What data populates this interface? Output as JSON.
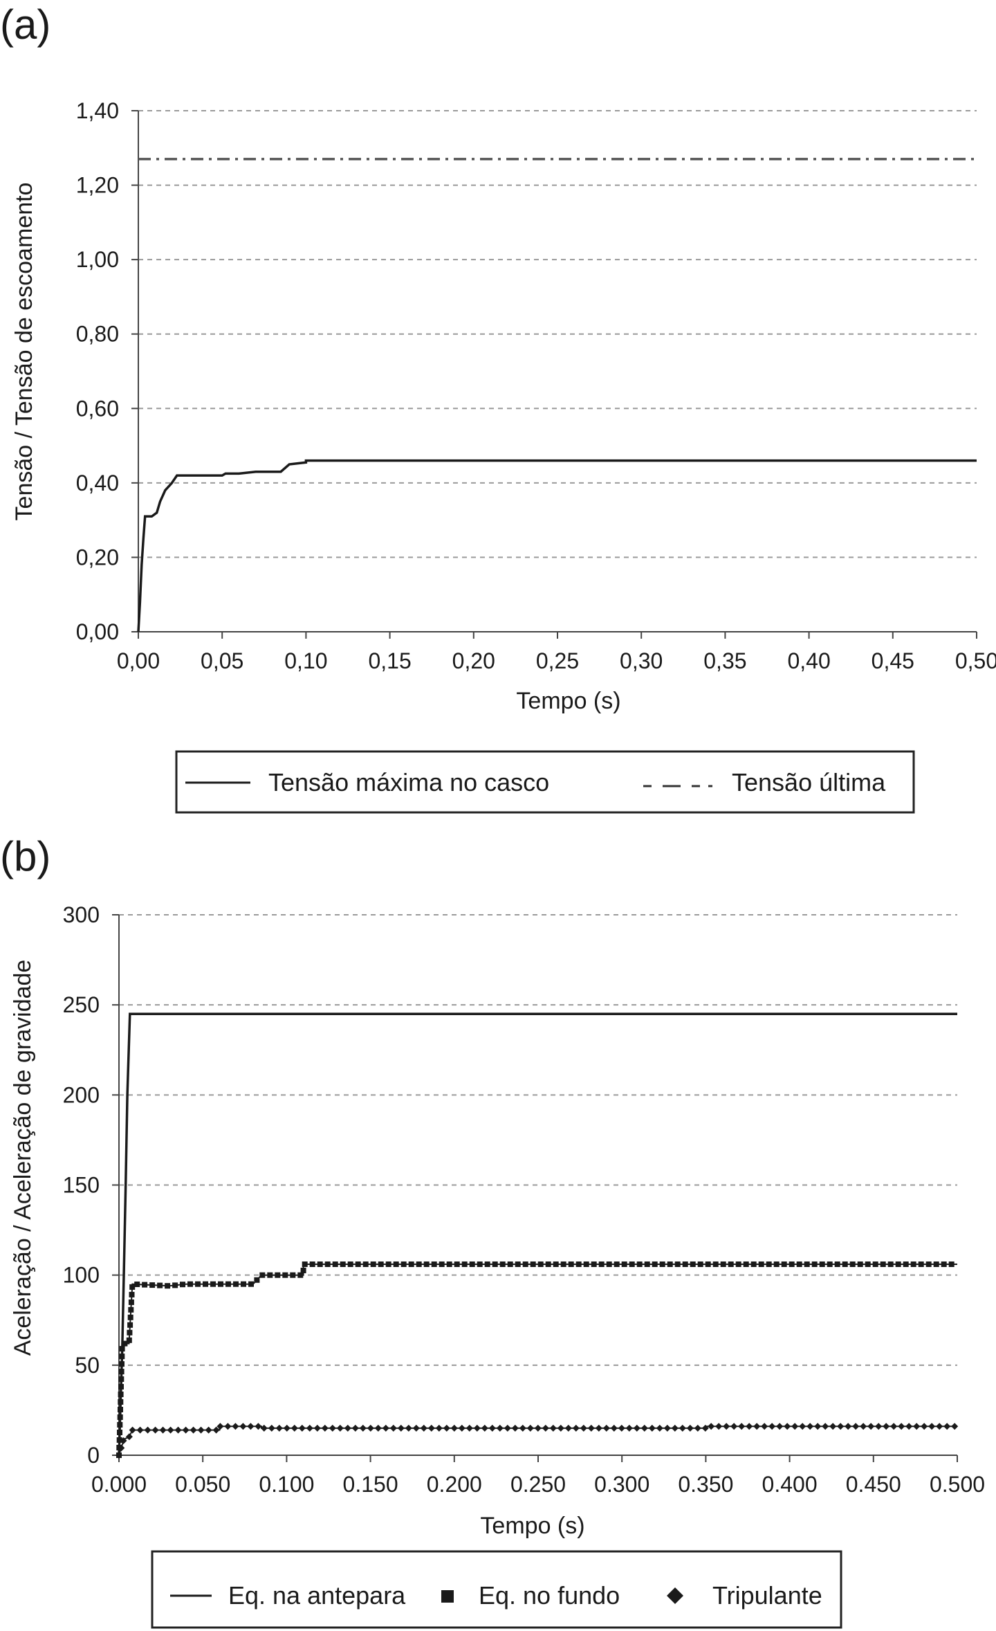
{
  "chart_data": [
    {
      "panel_label": "(a)",
      "type": "line",
      "xlabel": "Tempo (s)",
      "ylabel": "Tensão / Tensão de escoamento",
      "xlim": [
        0,
        0.5
      ],
      "ylim": [
        0,
        1.4
      ],
      "x_ticks": [
        "0,00",
        "0,05",
        "0,10",
        "0,15",
        "0,20",
        "0,25",
        "0,30",
        "0,35",
        "0,40",
        "0,45",
        "0,50"
      ],
      "y_ticks": [
        "0,00",
        "0,20",
        "0,40",
        "0,60",
        "0,80",
        "1,00",
        "1,20",
        "1,40"
      ],
      "grid": "horizontal-dashed",
      "legend_position": "bottom",
      "series": [
        {
          "name": "Tensão máxima no casco",
          "style": "solid",
          "color": "#1a1a1a",
          "points": [
            [
              0,
              0
            ],
            [
              0.001,
              0.08
            ],
            [
              0.002,
              0.18
            ],
            [
              0.003,
              0.25
            ],
            [
              0.004,
              0.31
            ],
            [
              0.008,
              0.31
            ],
            [
              0.011,
              0.32
            ],
            [
              0.013,
              0.35
            ],
            [
              0.016,
              0.38
            ],
            [
              0.02,
              0.4
            ],
            [
              0.023,
              0.42
            ],
            [
              0.035,
              0.42
            ],
            [
              0.05,
              0.42
            ],
            [
              0.052,
              0.425
            ],
            [
              0.06,
              0.425
            ],
            [
              0.07,
              0.43
            ],
            [
              0.07,
              0.43
            ],
            [
              0.085,
              0.43
            ],
            [
              0.09,
              0.45
            ],
            [
              0.1,
              0.455
            ],
            [
              0.1,
              0.455
            ],
            [
              0.1,
              0.46
            ],
            [
              0.5,
              0.46
            ]
          ]
        },
        {
          "name": "Tensão última",
          "style": "dash-dot",
          "color": "#555555",
          "points": [
            [
              0,
              1.27
            ],
            [
              0.5,
              1.27
            ]
          ]
        }
      ]
    },
    {
      "panel_label": "(b)",
      "type": "line",
      "xlabel": "Tempo (s)",
      "ylabel": "Aceleração / Aceleração de gravidade",
      "xlim": [
        0,
        0.5
      ],
      "ylim": [
        0,
        300
      ],
      "x_ticks": [
        "0.000",
        "0.050",
        "0.100",
        "0.150",
        "0.200",
        "0.250",
        "0.300",
        "0.350",
        "0.400",
        "0.450",
        "0.500"
      ],
      "y_ticks": [
        "0",
        "50",
        "100",
        "150",
        "200",
        "250",
        "300"
      ],
      "grid": "horizontal-dashed",
      "legend_position": "bottom",
      "series": [
        {
          "name": "Eq. na antepara",
          "style": "solid",
          "color": "#1a1a1a",
          "points": [
            [
              0,
              0
            ],
            [
              0.002,
              60
            ],
            [
              0.003,
              105
            ],
            [
              0.004,
              150
            ],
            [
              0.005,
              200
            ],
            [
              0.0065,
              245
            ],
            [
              0.5,
              245
            ]
          ]
        },
        {
          "name": "Eq. no fundo",
          "style": "square-markers",
          "color": "#1a1a1a",
          "points": [
            [
              0,
              0
            ],
            [
              0.002,
              62
            ],
            [
              0.004,
              62
            ],
            [
              0.006,
              62
            ],
            [
              0.008,
              95
            ],
            [
              0.03,
              94
            ],
            [
              0.04,
              95
            ],
            [
              0.06,
              95
            ],
            [
              0.08,
              95
            ],
            [
              0.085,
              100
            ],
            [
              0.1,
              100
            ],
            [
              0.11,
              100
            ],
            [
              0.11,
              106
            ],
            [
              0.3,
              106
            ],
            [
              0.5,
              106
            ]
          ]
        },
        {
          "name": "Tripulante",
          "style": "diamond-markers",
          "color": "#1a1a1a",
          "points": [
            [
              0,
              0
            ],
            [
              0.003,
              9
            ],
            [
              0.006,
              10
            ],
            [
              0.008,
              14
            ],
            [
              0.06,
              14
            ],
            [
              0.06,
              16
            ],
            [
              0.085,
              16
            ],
            [
              0.085,
              15
            ],
            [
              0.35,
              15
            ],
            [
              0.35,
              16
            ],
            [
              0.5,
              16
            ]
          ]
        }
      ]
    }
  ]
}
